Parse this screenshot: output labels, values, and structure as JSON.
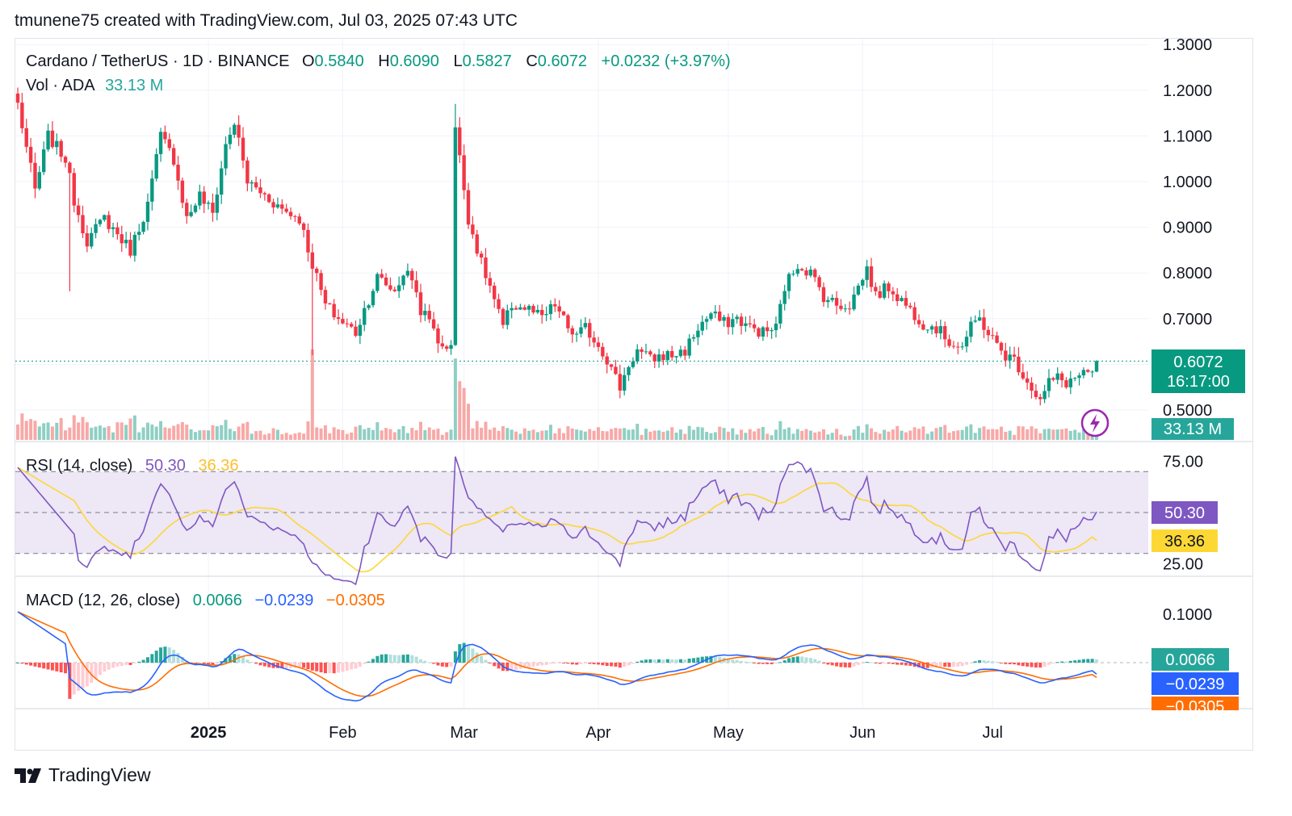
{
  "header": {
    "text": "tmunene75 created with TradingView.com, Jul 03, 2025 07:43 UTC"
  },
  "legend": {
    "symbol": "Cardano / TetherUS · 1D · BINANCE",
    "o_label": "O",
    "o_value": "0.5840",
    "h_label": "H",
    "h_value": "0.6090",
    "l_label": "L",
    "l_value": "0.5827",
    "c_label": "C",
    "c_value": "0.6072",
    "change": "+0.0232 (+3.97%)",
    "vol_label": "Vol · ADA",
    "vol_value": "33.13 M"
  },
  "rsi_legend": {
    "label": "RSI (14, close)",
    "rsi_value": "50.30",
    "ma_value": "36.36"
  },
  "macd_legend": {
    "label": "MACD (12, 26, close)",
    "hist_value": "0.0066",
    "macd_value": "−0.0239",
    "signal_value": "−0.0305"
  },
  "badges": {
    "price": "0.6072",
    "countdown": "16:17:00",
    "volume": "33.13 M",
    "rsi": "50.30",
    "rsi_ma": "36.36",
    "macd_hist": "0.0066",
    "macd": "−0.0239",
    "macd_signal": "−0.0305"
  },
  "colors": {
    "up": "#089981",
    "down": "#f23645",
    "vol_up": "#8fcfc3",
    "vol_down": "#f7a9a7",
    "rsi_line": "#7e57c2",
    "rsi_ma": "#fdd835",
    "rsi_band": "#ede7f6",
    "macd_line": "#2962ff",
    "signal_line": "#ff6d00",
    "hist_up_strong": "#26a69a",
    "hist_up_weak": "#b2dfdb",
    "hist_down_strong": "#ff5252",
    "hist_down_weak": "#ffcdd2",
    "grid": "#f0f3fa",
    "text": "#131722"
  },
  "footer": {
    "logo_text": "TradingView"
  },
  "chart_data": {
    "type": "candlestick",
    "title": "Cardano / TetherUS · 1D · BINANCE",
    "price_axis": {
      "ticks": [
        "0.5000",
        "0.7000",
        "0.8000",
        "0.9000",
        "1.0000",
        "1.1000",
        "1.2000",
        "1.3000"
      ],
      "range": [
        0.47,
        1.3
      ]
    },
    "rsi_axis": {
      "ticks": [
        "25.00",
        "75.00"
      ],
      "upper_band": 70,
      "middle": 50,
      "lower_band": 30
    },
    "macd_axis": {
      "ticks": [
        "0.1000"
      ]
    },
    "time_axis": [
      "2025",
      "Feb",
      "Mar",
      "Apr",
      "May",
      "Jun",
      "Jul"
    ],
    "last": {
      "open": 0.584,
      "high": 0.609,
      "low": 0.5827,
      "close": 0.6072,
      "change": 0.0232,
      "change_pct": 3.97,
      "volume_m": 33.13,
      "rsi": 50.3,
      "rsi_ma": 36.36,
      "macd_hist": 0.0066,
      "macd": -0.0239,
      "signal": -0.0305
    },
    "close_anchors": [
      [
        0,
        1.17
      ],
      [
        4,
        0.98
      ],
      [
        7,
        1.1
      ],
      [
        11,
        1.05
      ],
      [
        13,
        0.96
      ],
      [
        16,
        0.87
      ],
      [
        20,
        0.92
      ],
      [
        26,
        0.85
      ],
      [
        30,
        0.95
      ],
      [
        33,
        1.1
      ],
      [
        36,
        1.05
      ],
      [
        39,
        0.92
      ],
      [
        42,
        0.97
      ],
      [
        45,
        0.93
      ],
      [
        48,
        1.08
      ],
      [
        50,
        1.13
      ],
      [
        53,
        1.0
      ],
      [
        57,
        0.97
      ],
      [
        61,
        0.94
      ],
      [
        65,
        0.92
      ],
      [
        68,
        0.82
      ],
      [
        71,
        0.73
      ],
      [
        74,
        0.7
      ],
      [
        78,
        0.67
      ],
      [
        80,
        0.72
      ],
      [
        83,
        0.79
      ],
      [
        87,
        0.76
      ],
      [
        89,
        0.8
      ],
      [
        91,
        0.79
      ],
      [
        93,
        0.72
      ],
      [
        96,
        0.68
      ],
      [
        98,
        0.63
      ],
      [
        100,
        0.65
      ],
      [
        101,
        1.12
      ],
      [
        102,
        1.05
      ],
      [
        104,
        0.92
      ],
      [
        107,
        0.82
      ],
      [
        109,
        0.77
      ],
      [
        112,
        0.68
      ],
      [
        114,
        0.73
      ],
      [
        118,
        0.72
      ],
      [
        121,
        0.7
      ],
      [
        124,
        0.73
      ],
      [
        127,
        0.68
      ],
      [
        129,
        0.66
      ],
      [
        131,
        0.68
      ],
      [
        135,
        0.63
      ],
      [
        139,
        0.55
      ],
      [
        141,
        0.6
      ],
      [
        143,
        0.63
      ],
      [
        146,
        0.61
      ],
      [
        149,
        0.62
      ],
      [
        151,
        0.62
      ],
      [
        154,
        0.63
      ],
      [
        157,
        0.68
      ],
      [
        160,
        0.71
      ],
      [
        163,
        0.69
      ],
      [
        166,
        0.7
      ],
      [
        169,
        0.68
      ],
      [
        172,
        0.67
      ],
      [
        175,
        0.68
      ],
      [
        177,
        0.77
      ],
      [
        180,
        0.82
      ],
      [
        183,
        0.8
      ],
      [
        186,
        0.75
      ],
      [
        189,
        0.73
      ],
      [
        192,
        0.73
      ],
      [
        194,
        0.77
      ],
      [
        196,
        0.81
      ],
      [
        198,
        0.75
      ],
      [
        201,
        0.77
      ],
      [
        203,
        0.75
      ],
      [
        206,
        0.72
      ],
      [
        209,
        0.69
      ],
      [
        212,
        0.68
      ],
      [
        215,
        0.65
      ],
      [
        218,
        0.64
      ],
      [
        220,
        0.68
      ],
      [
        222,
        0.7
      ],
      [
        224,
        0.67
      ],
      [
        226,
        0.64
      ],
      [
        228,
        0.62
      ],
      [
        230,
        0.61
      ],
      [
        232,
        0.58
      ],
      [
        234,
        0.55
      ],
      [
        236,
        0.52
      ],
      [
        238,
        0.56
      ],
      [
        240,
        0.57
      ],
      [
        242,
        0.56
      ],
      [
        244,
        0.57
      ],
      [
        246,
        0.58
      ],
      [
        247,
        0.57
      ],
      [
        248,
        0.584
      ],
      [
        249,
        0.6072
      ]
    ]
  }
}
